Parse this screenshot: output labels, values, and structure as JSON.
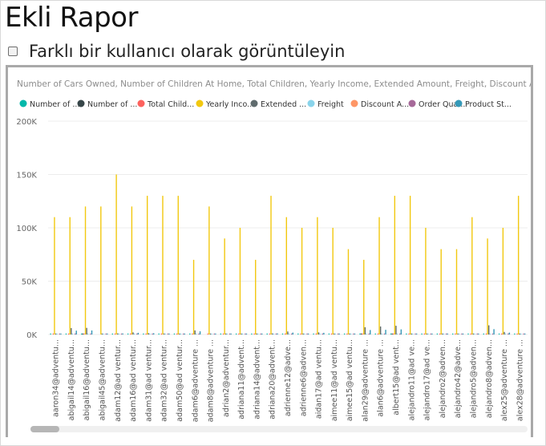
{
  "page": {
    "title": "Ekli Rapor",
    "checkbox_label": "Farklı bir kullanıcı olarak görüntüleyin"
  },
  "chart_data": {
    "type": "bar",
    "title": "Number of Cars Owned, Number of Children At Home, Total Children, Yearly Income, Extended Amount, Freight, Discount Am...",
    "legend_position": "top-left",
    "grid": true,
    "ylim": [
      0,
      200000
    ],
    "yticks": [
      0,
      50000,
      100000,
      150000,
      200000
    ],
    "ytick_labels": [
      "0K",
      "50K",
      "100K",
      "150K",
      "200K"
    ],
    "categories": [
      "aaron34@adventu...",
      "abigail14@adventu...",
      "abigail16@adventu...",
      "abigail45@adventu...",
      "adam12@ad ventur...",
      "adam16@ad ventur...",
      "adam31@ad ventur...",
      "adam32@ad ventur...",
      "adam50@ad ventur...",
      "adam6@adventure ...",
      "adam8@adventure ...",
      "adrian2@adventur...",
      "adriana11@advent...",
      "adriana14@advent...",
      "adriana20@advent...",
      "adrienne12@adve...",
      "adrienne6@adven...",
      "aidan17@ad ventu...",
      "aimee11@ad ventu...",
      "aimee15@ad ventu...",
      "alan29@adventure ...",
      "alan6@adventure ...",
      "albert15@ad vent...",
      "alejandro11@ad ve...",
      "alejandro17@ad ve...",
      "alejandro2@adven...",
      "alejandro42@adve...",
      "alejandro5@adven...",
      "alejandro8@adven...",
      "alex25@adventure ...",
      "alex28@adventure ..."
    ],
    "series": [
      {
        "name": "Number of ...",
        "color": "#01b8aa",
        "values": [
          1,
          1,
          3,
          0,
          1,
          1,
          1,
          1,
          1,
          1,
          0,
          1,
          1,
          1,
          1,
          1,
          1,
          1,
          1,
          1,
          2,
          1,
          2,
          1,
          1,
          1,
          1,
          1,
          1,
          1,
          1
        ]
      },
      {
        "name": "Number of ...",
        "color": "#374649",
        "values": [
          0,
          0,
          2,
          0,
          0,
          0,
          0,
          0,
          0,
          0,
          0,
          0,
          0,
          0,
          0,
          0,
          0,
          0,
          0,
          0,
          1,
          0,
          2,
          0,
          0,
          0,
          0,
          0,
          0,
          0,
          0
        ]
      },
      {
        "name": "Total Child...",
        "color": "#fd625e",
        "values": [
          2,
          2,
          2,
          0,
          2,
          2,
          2,
          1,
          1,
          3,
          1,
          1,
          2,
          1,
          2,
          2,
          1,
          2,
          2,
          2,
          3,
          3,
          3,
          2,
          2,
          1,
          1,
          2,
          2,
          2,
          2
        ]
      },
      {
        "name": "Yearly Inco...",
        "color": "#f2c80f",
        "values": [
          110000,
          110000,
          120000,
          120000,
          150000,
          120000,
          130000,
          130000,
          130000,
          70000,
          120000,
          90000,
          100000,
          70000,
          130000,
          110000,
          100000,
          110000,
          100000,
          80000,
          70000,
          110000,
          130000,
          130000,
          100000,
          80000,
          80000,
          110000,
          90000,
          100000,
          130000
        ]
      },
      {
        "name": "Extended ...",
        "color": "#5f6b6d",
        "values": [
          700,
          6000,
          6200,
          800,
          1000,
          2000,
          1200,
          600,
          800,
          3800,
          900,
          500,
          400,
          600,
          1000,
          2800,
          600,
          2000,
          700,
          600,
          6800,
          7500,
          8200,
          600,
          600,
          600,
          500,
          800,
          8600,
          2400,
          800
        ]
      },
      {
        "name": "Freight",
        "color": "#8ad4eb",
        "values": [
          18,
          150,
          155,
          20,
          25,
          50,
          30,
          15,
          20,
          95,
          22,
          12,
          10,
          15,
          25,
          70,
          15,
          50,
          18,
          15,
          170,
          188,
          205,
          15,
          15,
          15,
          12,
          20,
          215,
          60,
          20
        ]
      },
      {
        "name": "Discount A...",
        "color": "#fe9666",
        "values": [
          0,
          0,
          0,
          0,
          0,
          0,
          0,
          0,
          0,
          0,
          0,
          0,
          0,
          0,
          0,
          0,
          0,
          0,
          0,
          0,
          0,
          0,
          0,
          0,
          0,
          0,
          0,
          0,
          0,
          0,
          0
        ]
      },
      {
        "name": "Order Qua...",
        "color": "#a66999",
        "values": [
          1,
          3,
          2,
          1,
          1,
          2,
          1,
          1,
          1,
          2,
          1,
          1,
          1,
          1,
          1,
          2,
          1,
          2,
          1,
          1,
          3,
          3,
          3,
          1,
          1,
          1,
          1,
          1,
          3,
          2,
          1
        ]
      },
      {
        "name": "Product St...",
        "color": "#3599b8",
        "values": [
          700,
          3600,
          3800,
          800,
          1000,
          1600,
          1200,
          600,
          800,
          3000,
          900,
          500,
          400,
          600,
          1000,
          1800,
          600,
          1600,
          700,
          600,
          4200,
          4400,
          4800,
          600,
          600,
          600,
          500,
          800,
          5000,
          1800,
          800
        ]
      }
    ]
  }
}
